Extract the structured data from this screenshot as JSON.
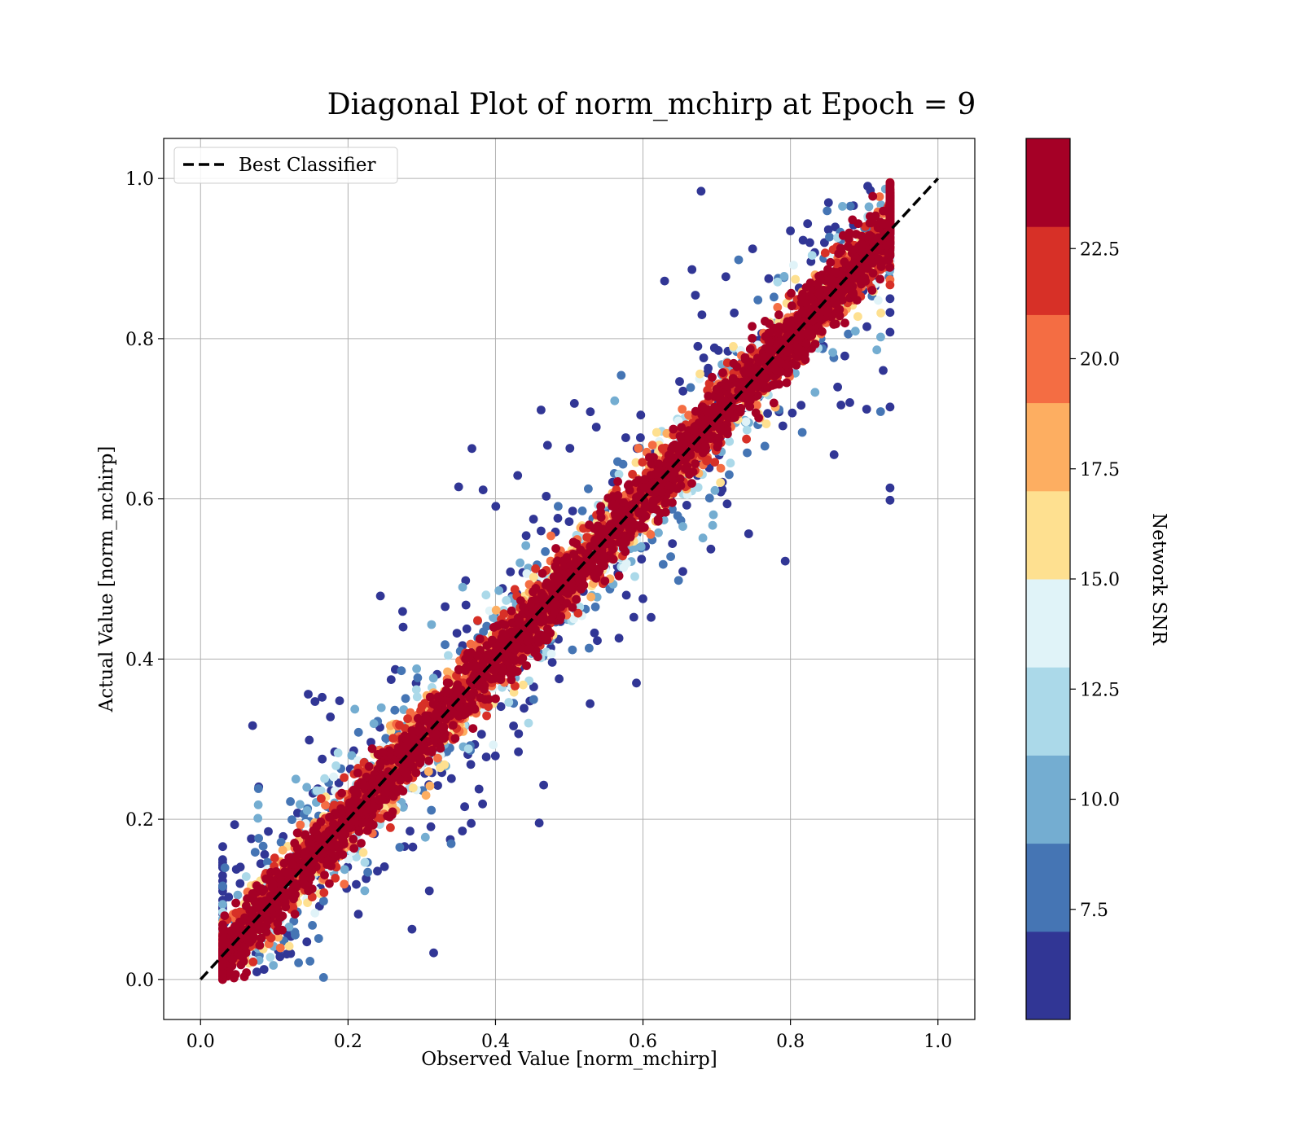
{
  "chart_data": {
    "type": "scatter",
    "title": "Diagonal Plot of norm_mchirp at Epoch = 9",
    "xlabel": "Observed Value [norm_mchirp]",
    "ylabel": "Actual Value [norm_mchirp]",
    "xlim": [
      -0.05,
      1.05
    ],
    "ylim": [
      -0.05,
      1.05
    ],
    "xticks": [
      "0.0",
      "0.2",
      "0.4",
      "0.6",
      "0.8",
      "1.0"
    ],
    "yticks": [
      "0.0",
      "0.2",
      "0.4",
      "0.6",
      "0.8",
      "1.0"
    ],
    "grid": true,
    "legend": {
      "placement": "top-left",
      "entries": [
        {
          "label": "Best Classifier",
          "style": "black dashed line"
        }
      ]
    },
    "reference_line": {
      "label": "Best Classifier",
      "x": [
        0.0,
        1.0
      ],
      "y": [
        0.0,
        1.0
      ],
      "color": "#000000"
    },
    "colorbar": {
      "label": "Network SNR",
      "ticks": [
        "7.5",
        "10.0",
        "12.5",
        "15.0",
        "17.5",
        "20.0",
        "22.5"
      ],
      "tick_values": [
        7.5,
        10.0,
        12.5,
        15.0,
        17.5,
        20.0,
        22.5
      ],
      "range": [
        5.0,
        25.0
      ],
      "colors": [
        "#313695",
        "#4575b4",
        "#74add1",
        "#abd9e9",
        "#e0f3f8",
        "#fee090",
        "#fdae61",
        "#f46d43",
        "#d73027",
        "#a50026"
      ]
    },
    "scatter_summary": {
      "approx_points": 6000,
      "description": "points cluster around y = x; high-SNR points tight near diagonal, low-SNR points widely scattered"
    }
  }
}
